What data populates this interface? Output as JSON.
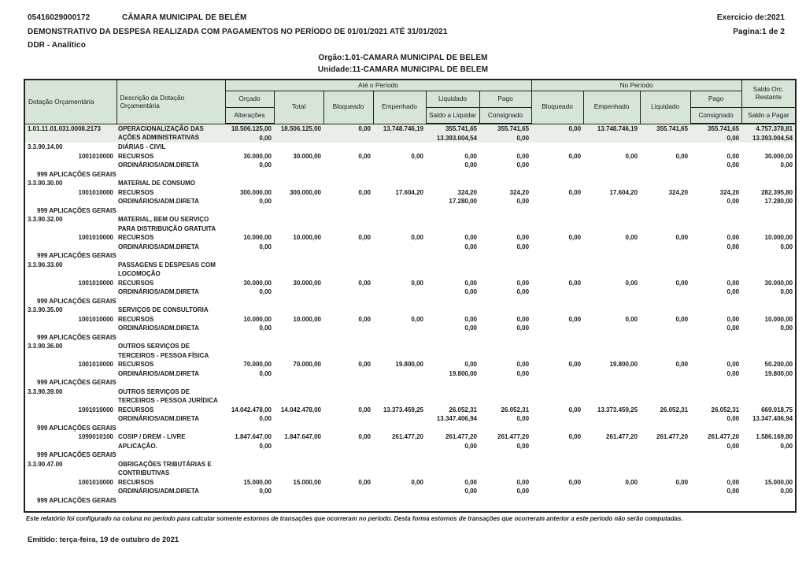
{
  "page": {
    "doc_number": "05416029000172",
    "entity": "CÂMARA MUNICIPAL DE BELÉM",
    "exercise": "Exercicio de:2021",
    "title": "DEMONSTRATIVO DA DESPESA REALIZADA COM PAGAMENTOS NO PERÍODO DE 01/01/2021 ATÉ 31/01/2021",
    "page_info": "Pagina:1 de 2",
    "report_type": "DDR - Analítico",
    "orgao": "Orgão:1.01-CAMARA MUNICIPAL DE BELEM",
    "unidade": "Unidade:11-CAMARA MUNICIPAL DE BELEM",
    "footnote": "Este relatório foi configurado na coluna no período para calcular somente estornos de transações que ocorreram no período. Desta forma estornos de transações que ocorreram anterior a este período não serão computadas.",
    "emitted": "Emitido: terça-feira, 19 de outubro de 2021"
  },
  "colors": {
    "header_bg": "#d6e5d8",
    "highlight_bg": "#e7efe7",
    "border": "#222222"
  },
  "table": {
    "header": {
      "dotacao": "Dotação Orçamentária",
      "descricao": "Descrição da Dotação Orçamentária",
      "ate_periodo": "Até o Período",
      "no_periodo": "No Período",
      "orcado": "Orçado",
      "alteracoes": "Alterações",
      "total": "Total",
      "bloqueado": "Bloqueado",
      "empenhado": "Empenhado",
      "liquidado": "Liquidado",
      "saldo_a_liquidar": "Saldo a Liquidar",
      "pago": "Pago",
      "consignado": "Consignado",
      "bloqueado_periodo": "Bloqueado",
      "empenhado_periodo": "Empenhado",
      "liquidado_periodo": "Liquidado",
      "pago_periodo": "Pago",
      "consignado_periodo": "Consignado",
      "saldo_orc_restante": "Saldo Orc. Restante",
      "saldo_a_pagar": "Saldo a Pagar"
    },
    "rows": [
      {
        "type": "main",
        "highlight": true,
        "code": "1.01.11.01.031.0008.2173",
        "desc": [
          "OPERACIONALIZAÇÃO DAS",
          "AÇÕES ADMINISTRATIVAS"
        ],
        "cells": [
          [
            "18.506.125,00",
            "0,00"
          ],
          [
            "18.506.125,00",
            ""
          ],
          [
            "0,00",
            ""
          ],
          [
            "13.748.746,19",
            ""
          ],
          [
            "355.741,65",
            "13.393.004,54"
          ],
          [
            "355.741,65",
            "0,00"
          ],
          [
            "0,00",
            ""
          ],
          [
            "13.748.746,19",
            ""
          ],
          [
            "355.741,65",
            ""
          ],
          [
            "355.741,65",
            "0,00"
          ],
          [
            "4.757.378,81",
            "13.393.004,54"
          ]
        ]
      },
      {
        "type": "element",
        "code": "3.3.90.14.00",
        "desc": [
          "DIÁRIAS - CIVIL"
        ]
      },
      {
        "type": "source",
        "code": "1001010000",
        "desc": [
          "RECURSOS",
          "ORDINÁRIOS/ADM.DIRETA"
        ],
        "cells": [
          [
            "30.000,00",
            "0,00"
          ],
          [
            "30.000,00",
            ""
          ],
          [
            "0,00",
            ""
          ],
          [
            "0,00",
            ""
          ],
          [
            "0,00",
            "0,00"
          ],
          [
            "0,00",
            "0,00"
          ],
          [
            "0,00",
            ""
          ],
          [
            "0,00",
            ""
          ],
          [
            "0,00",
            ""
          ],
          [
            "0,00",
            "0,00"
          ],
          [
            "30.000,00",
            "0,00"
          ]
        ]
      },
      {
        "type": "apl",
        "label": "999 APLICAÇÕES GERAIS"
      },
      {
        "type": "element",
        "code": "3.3.90.30.00",
        "desc": [
          "MATERIAL DE CONSUMO"
        ]
      },
      {
        "type": "source",
        "code": "1001010000",
        "desc": [
          "RECURSOS",
          "ORDINÁRIOS/ADM.DIRETA"
        ],
        "cells": [
          [
            "300.000,00",
            "0,00"
          ],
          [
            "300.000,00",
            ""
          ],
          [
            "0,00",
            ""
          ],
          [
            "17.604,20",
            ""
          ],
          [
            "324,20",
            "17.280,00"
          ],
          [
            "324,20",
            "0,00"
          ],
          [
            "0,00",
            ""
          ],
          [
            "17.604,20",
            ""
          ],
          [
            "324,20",
            ""
          ],
          [
            "324,20",
            "0,00"
          ],
          [
            "282.395,80",
            "17.280,00"
          ]
        ]
      },
      {
        "type": "apl",
        "label": "999 APLICAÇÕES GERAIS"
      },
      {
        "type": "element",
        "code": "3.3.90.32.00",
        "desc": [
          "MATERIAL, BEM OU SERVIÇO",
          "PARA DISTRIBUIÇÃO GRATUITA"
        ]
      },
      {
        "type": "source",
        "code": "1001010000",
        "desc": [
          "RECURSOS",
          "ORDINÁRIOS/ADM.DIRETA"
        ],
        "cells": [
          [
            "10.000,00",
            "0,00"
          ],
          [
            "10.000,00",
            ""
          ],
          [
            "0,00",
            ""
          ],
          [
            "0,00",
            ""
          ],
          [
            "0,00",
            "0,00"
          ],
          [
            "0,00",
            "0,00"
          ],
          [
            "0,00",
            ""
          ],
          [
            "0,00",
            ""
          ],
          [
            "0,00",
            ""
          ],
          [
            "0,00",
            "0,00"
          ],
          [
            "10.000,00",
            "0,00"
          ]
        ]
      },
      {
        "type": "apl",
        "label": "999 APLICAÇÕES GERAIS"
      },
      {
        "type": "element",
        "code": "3.3.90.33.00",
        "desc": [
          "PASSAGENS E DESPESAS COM",
          "LOCOMOÇÃO"
        ]
      },
      {
        "type": "source",
        "code": "1001010000",
        "desc": [
          "RECURSOS",
          "ORDINÁRIOS/ADM.DIRETA"
        ],
        "cells": [
          [
            "30.000,00",
            "0,00"
          ],
          [
            "30.000,00",
            ""
          ],
          [
            "0,00",
            ""
          ],
          [
            "0,00",
            ""
          ],
          [
            "0,00",
            "0,00"
          ],
          [
            "0,00",
            "0,00"
          ],
          [
            "0,00",
            ""
          ],
          [
            "0,00",
            ""
          ],
          [
            "0,00",
            ""
          ],
          [
            "0,00",
            "0,00"
          ],
          [
            "30.000,00",
            "0,00"
          ]
        ]
      },
      {
        "type": "apl",
        "label": "999 APLICAÇÕES GERAIS"
      },
      {
        "type": "element",
        "code": "3.3.90.35.00",
        "desc": [
          "SERVIÇOS DE CONSULTORIA"
        ]
      },
      {
        "type": "source",
        "code": "1001010000",
        "desc": [
          "RECURSOS",
          "ORDINÁRIOS/ADM.DIRETA"
        ],
        "cells": [
          [
            "10.000,00",
            "0,00"
          ],
          [
            "10.000,00",
            ""
          ],
          [
            "0,00",
            ""
          ],
          [
            "0,00",
            ""
          ],
          [
            "0,00",
            "0,00"
          ],
          [
            "0,00",
            "0,00"
          ],
          [
            "0,00",
            ""
          ],
          [
            "0,00",
            ""
          ],
          [
            "0,00",
            ""
          ],
          [
            "0,00",
            "0,00"
          ],
          [
            "10.000,00",
            "0,00"
          ]
        ]
      },
      {
        "type": "apl",
        "label": "999 APLICAÇÕES GERAIS"
      },
      {
        "type": "element",
        "code": "3.3.90.36.00",
        "desc": [
          "OUTROS SERVIÇOS DE",
          "TERCEIROS - PESSOA FÍSICA"
        ]
      },
      {
        "type": "source",
        "code": "1001010000",
        "desc": [
          "RECURSOS",
          "ORDINÁRIOS/ADM.DIRETA"
        ],
        "cells": [
          [
            "70.000,00",
            "0,00"
          ],
          [
            "70.000,00",
            ""
          ],
          [
            "0,00",
            ""
          ],
          [
            "19.800,00",
            ""
          ],
          [
            "0,00",
            "19.800,00"
          ],
          [
            "0,00",
            "0,00"
          ],
          [
            "0,00",
            ""
          ],
          [
            "19.800,00",
            ""
          ],
          [
            "0,00",
            ""
          ],
          [
            "0,00",
            "0,00"
          ],
          [
            "50.200,00",
            "19.800,00"
          ]
        ]
      },
      {
        "type": "apl",
        "label": "999 APLICAÇÕES GERAIS"
      },
      {
        "type": "element",
        "code": "3.3.90.39.00",
        "desc": [
          "OUTROS SERVIÇOS DE",
          "TERCEIROS - PESSOA JURÍDICA"
        ]
      },
      {
        "type": "source",
        "code": "1001010000",
        "desc": [
          "RECURSOS",
          "ORDINÁRIOS/ADM.DIRETA"
        ],
        "cells": [
          [
            "14.042.478,00",
            "0,00"
          ],
          [
            "14.042.478,00",
            ""
          ],
          [
            "0,00",
            ""
          ],
          [
            "13.373.459,25",
            ""
          ],
          [
            "26.052,31",
            "13.347.406,94"
          ],
          [
            "26.052,31",
            "0,00"
          ],
          [
            "0,00",
            ""
          ],
          [
            "13.373.459,25",
            ""
          ],
          [
            "26.052,31",
            ""
          ],
          [
            "26.052,31",
            "0,00"
          ],
          [
            "669.018,75",
            "13.347.406,94"
          ]
        ]
      },
      {
        "type": "apl",
        "label": "999 APLICAÇÕES GERAIS"
      },
      {
        "type": "source",
        "code": "1090010100",
        "desc": [
          "COSIP / DREM - LIVRE",
          "APLICAÇÃO."
        ],
        "cells": [
          [
            "1.847.647,00",
            "0,00"
          ],
          [
            "1.847.647,00",
            ""
          ],
          [
            "0,00",
            ""
          ],
          [
            "261.477,20",
            ""
          ],
          [
            "261.477,20",
            "0,00"
          ],
          [
            "261.477,20",
            "0,00"
          ],
          [
            "0,00",
            ""
          ],
          [
            "261.477,20",
            ""
          ],
          [
            "261.477,20",
            ""
          ],
          [
            "261.477,20",
            "0,00"
          ],
          [
            "1.586.169,80",
            "0,00"
          ]
        ]
      },
      {
        "type": "apl",
        "label": "999 APLICAÇÕES GERAIS"
      },
      {
        "type": "element",
        "code": "3.3.90.47.00",
        "desc": [
          "OBRIGAÇÕES TRIBUTÁRIAS E",
          "CONTRIBUTIVAS"
        ]
      },
      {
        "type": "source",
        "code": "1001010000",
        "desc": [
          "RECURSOS",
          "ORDINÁRIOS/ADM.DIRETA"
        ],
        "cells": [
          [
            "15.000,00",
            "0,00"
          ],
          [
            "15.000,00",
            ""
          ],
          [
            "0,00",
            ""
          ],
          [
            "0,00",
            ""
          ],
          [
            "0,00",
            "0,00"
          ],
          [
            "0,00",
            "0,00"
          ],
          [
            "0,00",
            ""
          ],
          [
            "0,00",
            ""
          ],
          [
            "0,00",
            ""
          ],
          [
            "0,00",
            "0,00"
          ],
          [
            "15.000,00",
            "0,00"
          ]
        ]
      },
      {
        "type": "apl",
        "label": "999 APLICAÇÕES GERAIS"
      }
    ]
  }
}
